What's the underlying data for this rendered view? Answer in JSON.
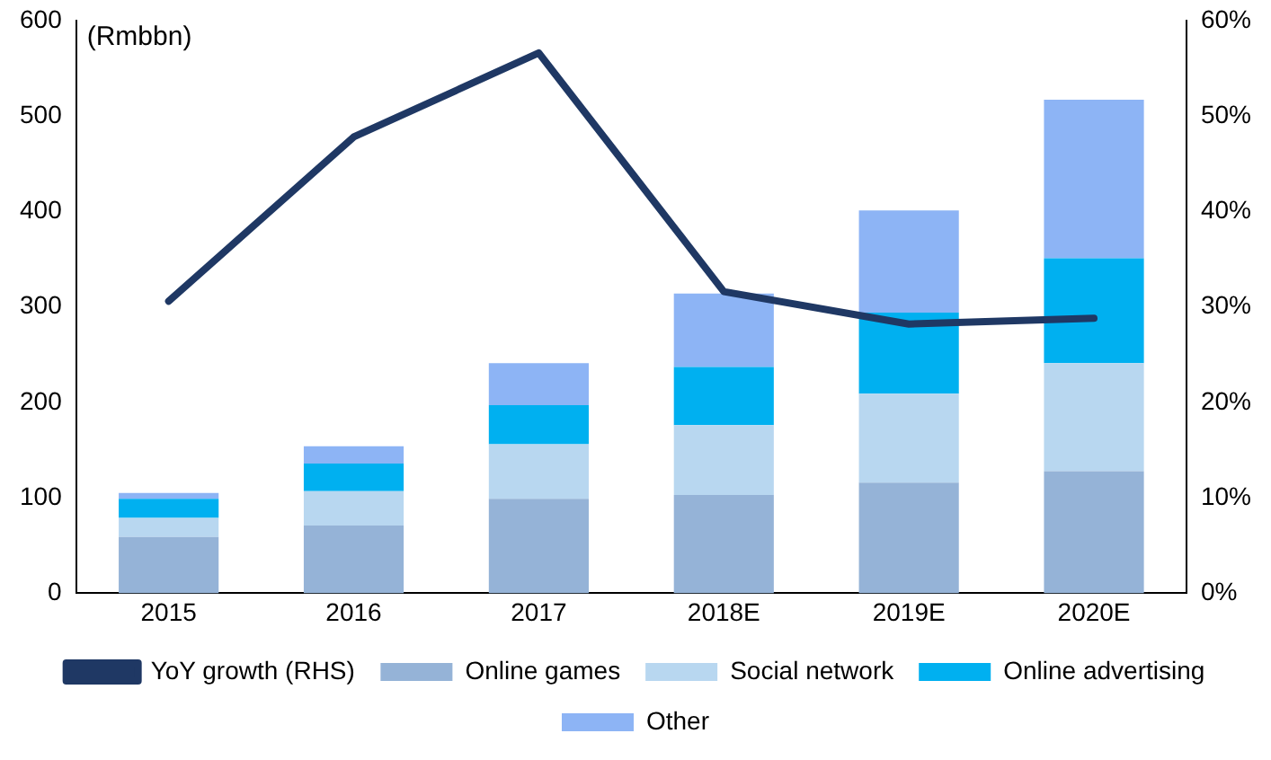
{
  "chart_data": {
    "type": "bar",
    "stacked": true,
    "ylabel": "(Rmbbn)",
    "categories": [
      "2015",
      "2016",
      "2017",
      "2018E",
      "2019E",
      "2020E"
    ],
    "series": [
      {
        "name": "Online games",
        "color": "#95b3d7",
        "values": [
          59,
          71,
          99,
          103,
          116,
          128
        ]
      },
      {
        "name": "Social network",
        "color": "#b8d7f0",
        "values": [
          20,
          36,
          57,
          73,
          93,
          113
        ]
      },
      {
        "name": "Online advertising",
        "color": "#00b0f0",
        "values": [
          20,
          29,
          41,
          61,
          85,
          110
        ]
      },
      {
        "name": "Other",
        "color": "#8db4f5",
        "values": [
          6,
          18,
          44,
          77,
          107,
          166
        ]
      },
      {
        "name": "YoY growth (RHS)",
        "type": "line",
        "axis": "y2",
        "color": "#1f3864",
        "values": [
          30.6,
          47.8,
          56.6,
          31.6,
          28.2,
          28.8
        ]
      }
    ],
    "ylim": [
      0,
      600
    ],
    "yticks": [
      0,
      100,
      200,
      300,
      400,
      500,
      600
    ],
    "y2lim": [
      0,
      60
    ],
    "y2ticks": [
      {
        "value": 0,
        "label": "0%"
      },
      {
        "value": 10,
        "label": "10%"
      },
      {
        "value": 20,
        "label": "20%"
      },
      {
        "value": 30,
        "label": "30%"
      },
      {
        "value": 40,
        "label": "40%"
      },
      {
        "value": 50,
        "label": "50%"
      },
      {
        "value": 60,
        "label": "60%"
      }
    ],
    "grid": false,
    "legend": "bottom",
    "marker": "none",
    "line_style": "solid"
  }
}
